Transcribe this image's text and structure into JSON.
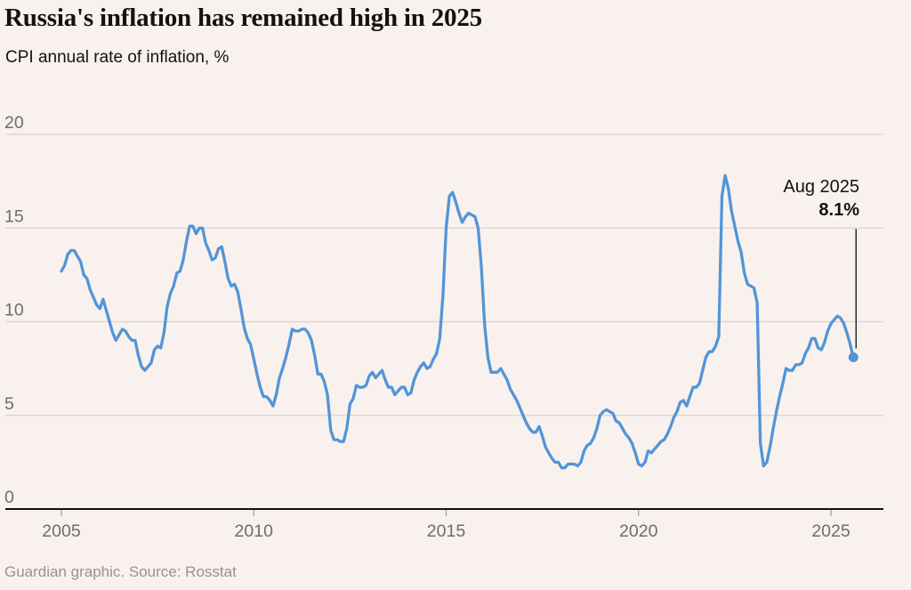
{
  "header": {
    "title": "Russia's inflation has remained high in 2025",
    "subtitle": "CPI annual rate of inflation, %"
  },
  "footer": {
    "credit": "Guardian graphic. Source: Rosstat"
  },
  "colors": {
    "background": "#f9f1ed",
    "line": "#5195d8",
    "grid": "#d9d3d0",
    "axis": "#121212",
    "tick_text": "#6d6d6d",
    "tick_mark": "#a59c99",
    "annotation_line": "#121212",
    "footer_text": "#9a918e"
  },
  "chart_data": {
    "type": "line",
    "title": "Russia's inflation has remained high in 2025",
    "subtitle": "CPI annual rate of inflation, %",
    "x_start_year": 2005,
    "x_interval_months": 1,
    "x_ticks": [
      2005,
      2010,
      2015,
      2020,
      2025
    ],
    "y_ticks": [
      0,
      5,
      10,
      15,
      20
    ],
    "ylim": [
      0,
      20
    ],
    "grid": true,
    "legend_position": "none",
    "end_point": {
      "x_label": "Aug 2025",
      "value": 8.1,
      "value_label": "8.1%"
    },
    "series": [
      {
        "name": "CPI annual rate of inflation, %",
        "values": [
          12.7,
          13.0,
          13.6,
          13.8,
          13.8,
          13.5,
          13.2,
          12.5,
          12.3,
          11.7,
          11.3,
          10.9,
          10.7,
          11.2,
          10.6,
          10.0,
          9.4,
          9.0,
          9.3,
          9.6,
          9.5,
          9.2,
          9.0,
          9.0,
          8.2,
          7.6,
          7.4,
          7.6,
          7.8,
          8.5,
          8.7,
          8.6,
          9.4,
          10.8,
          11.5,
          11.9,
          12.6,
          12.7,
          13.3,
          14.3,
          15.1,
          15.1,
          14.7,
          15.0,
          15.0,
          14.2,
          13.8,
          13.3,
          13.4,
          13.9,
          14.0,
          13.2,
          12.3,
          11.9,
          12.0,
          11.6,
          10.7,
          9.7,
          9.1,
          8.8,
          8.0,
          7.2,
          6.5,
          6.0,
          6.0,
          5.8,
          5.5,
          6.1,
          7.0,
          7.5,
          8.1,
          8.8,
          9.6,
          9.5,
          9.5,
          9.6,
          9.6,
          9.4,
          9.0,
          8.2,
          7.2,
          7.2,
          6.8,
          6.1,
          4.2,
          3.7,
          3.7,
          3.6,
          3.6,
          4.3,
          5.6,
          5.9,
          6.6,
          6.5,
          6.5,
          6.6,
          7.1,
          7.3,
          7.0,
          7.2,
          7.4,
          6.9,
          6.5,
          6.5,
          6.1,
          6.3,
          6.5,
          6.5,
          6.1,
          6.2,
          6.9,
          7.3,
          7.6,
          7.8,
          7.5,
          7.6,
          8.0,
          8.3,
          9.1,
          11.4,
          15.0,
          16.7,
          16.9,
          16.4,
          15.8,
          15.3,
          15.6,
          15.8,
          15.7,
          15.6,
          15.0,
          12.9,
          9.8,
          8.1,
          7.3,
          7.3,
          7.3,
          7.5,
          7.2,
          6.9,
          6.4,
          6.1,
          5.8,
          5.4,
          5.0,
          4.6,
          4.3,
          4.1,
          4.1,
          4.4,
          3.9,
          3.3,
          3.0,
          2.7,
          2.5,
          2.5,
          2.2,
          2.2,
          2.4,
          2.4,
          2.4,
          2.3,
          2.5,
          3.1,
          3.4,
          3.5,
          3.8,
          4.3,
          5.0,
          5.2,
          5.3,
          5.2,
          5.1,
          4.7,
          4.6,
          4.3,
          4.0,
          3.8,
          3.5,
          3.0,
          2.4,
          2.3,
          2.5,
          3.1,
          3.0,
          3.2,
          3.4,
          3.6,
          3.7,
          4.0,
          4.4,
          4.9,
          5.2,
          5.7,
          5.8,
          5.5,
          6.0,
          6.5,
          6.5,
          6.7,
          7.4,
          8.1,
          8.4,
          8.4,
          8.7,
          9.2,
          16.7,
          17.8,
          17.1,
          15.9,
          15.1,
          14.3,
          13.7,
          12.6,
          12.0,
          11.9,
          11.8,
          11.0,
          3.5,
          2.3,
          2.5,
          3.3,
          4.3,
          5.2,
          6.0,
          6.7,
          7.5,
          7.4,
          7.4,
          7.7,
          7.7,
          7.8,
          8.3,
          8.6,
          9.1,
          9.1,
          8.6,
          8.5,
          8.9,
          9.5,
          9.9,
          10.1,
          10.3,
          10.2,
          9.9,
          9.4,
          8.8,
          8.1
        ]
      }
    ]
  }
}
